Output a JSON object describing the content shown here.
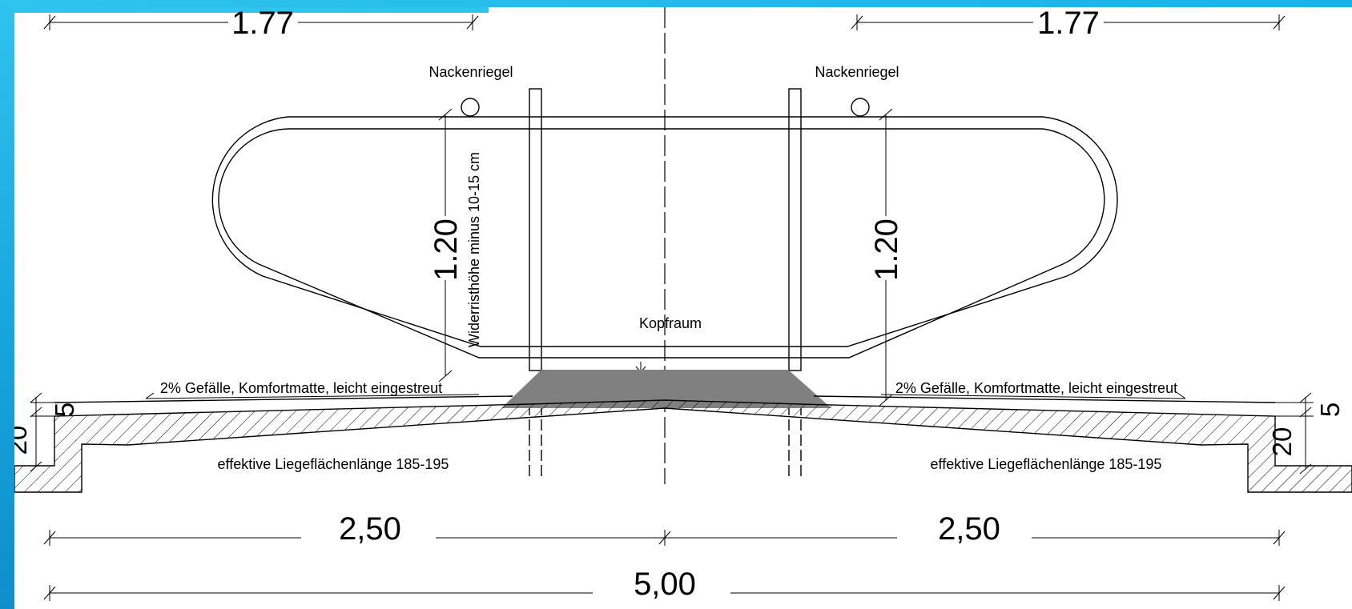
{
  "dimensions": {
    "top_left": "1.77",
    "top_right": "1.77",
    "rail_height_left": "1.20",
    "rail_height_right": "1.20",
    "half_width_left": "2,50",
    "half_width_right": "2,50",
    "total_width": "5,00",
    "curb_top_left": "5",
    "curb_top_right": "5",
    "curb_height_left": "20",
    "curb_height_right": "20"
  },
  "labels": {
    "neck_rail_left": "Nackenriegel",
    "neck_rail_right": "Nackenriegel",
    "withers_note": "Widerristhöhe minus 10-15 cm",
    "head_space": "Kopfraum",
    "slope_left": "2% Gefälle, Komfortmatte, leicht eingestreut",
    "slope_right": "2% Gefälle, Komfortmatte, leicht eingestreut",
    "lying_length_left": "effektive Liegeflächenlänge 185-195",
    "lying_length_right": "effektive Liegeflächenlänge 185-195"
  },
  "colors": {
    "frame_accent": "#2fc3ee",
    "brisket_board": "#808080",
    "line": "#000000",
    "background": "#ffffff"
  }
}
